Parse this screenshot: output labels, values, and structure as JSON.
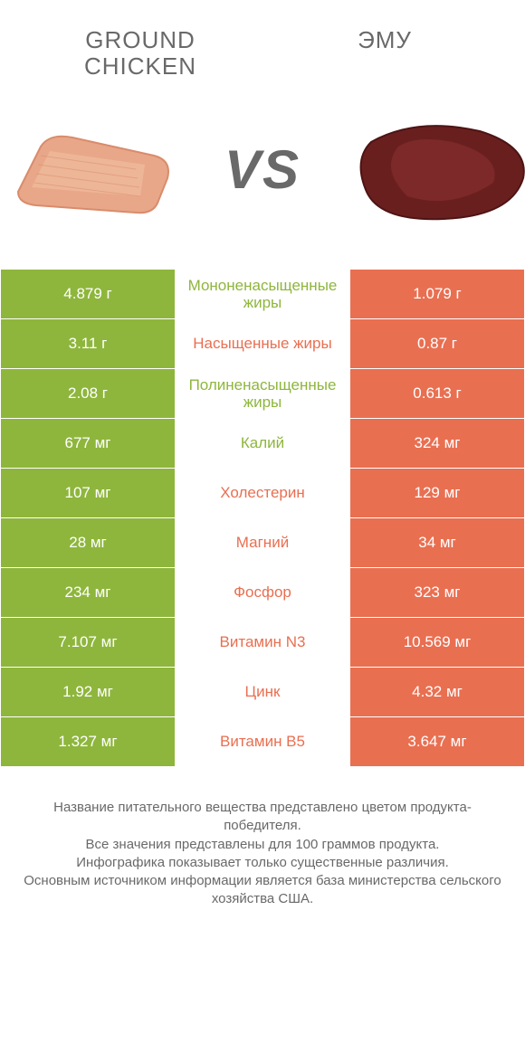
{
  "header": {
    "left_title": "GROUND CHICKEN",
    "right_title": "ЭМУ",
    "vs": "VS"
  },
  "colors": {
    "green": "#8eb63c",
    "orange": "#e96f51",
    "grey": "#696969",
    "white": "#ffffff"
  },
  "images": {
    "left": {
      "name": "ground-chicken",
      "fill": "#e9a789",
      "stroke": "#d98c6b"
    },
    "right": {
      "name": "emu-meat",
      "fill": "#6a1f1f",
      "stroke": "#4d1414"
    }
  },
  "rows": [
    {
      "left": "4.879 г",
      "label": "Мононенасыщенные жиры",
      "right": "1.079 г",
      "winner": "left"
    },
    {
      "left": "3.11 г",
      "label": "Насыщенные жиры",
      "right": "0.87 г",
      "winner": "right"
    },
    {
      "left": "2.08 г",
      "label": "Полиненасыщенные жиры",
      "right": "0.613 г",
      "winner": "left"
    },
    {
      "left": "677 мг",
      "label": "Калий",
      "right": "324 мг",
      "winner": "left"
    },
    {
      "left": "107 мг",
      "label": "Холестерин",
      "right": "129 мг",
      "winner": "right"
    },
    {
      "left": "28 мг",
      "label": "Магний",
      "right": "34 мг",
      "winner": "right"
    },
    {
      "left": "234 мг",
      "label": "Фосфор",
      "right": "323 мг",
      "winner": "right"
    },
    {
      "left": "7.107 мг",
      "label": "Витамин N3",
      "right": "10.569 мг",
      "winner": "right"
    },
    {
      "left": "1.92 мг",
      "label": "Цинк",
      "right": "4.32 мг",
      "winner": "right"
    },
    {
      "left": "1.327 мг",
      "label": "Витамин B5",
      "right": "3.647 мг",
      "winner": "right"
    }
  ],
  "footer": {
    "l1": "Название питательного вещества представлено цветом продукта-победителя.",
    "l2": "Все значения представлены для 100 граммов продукта.",
    "l3": "Инфографика показывает только существенные различия.",
    "l4": "Основным источником информации является база министерства сельского хозяйства США."
  }
}
